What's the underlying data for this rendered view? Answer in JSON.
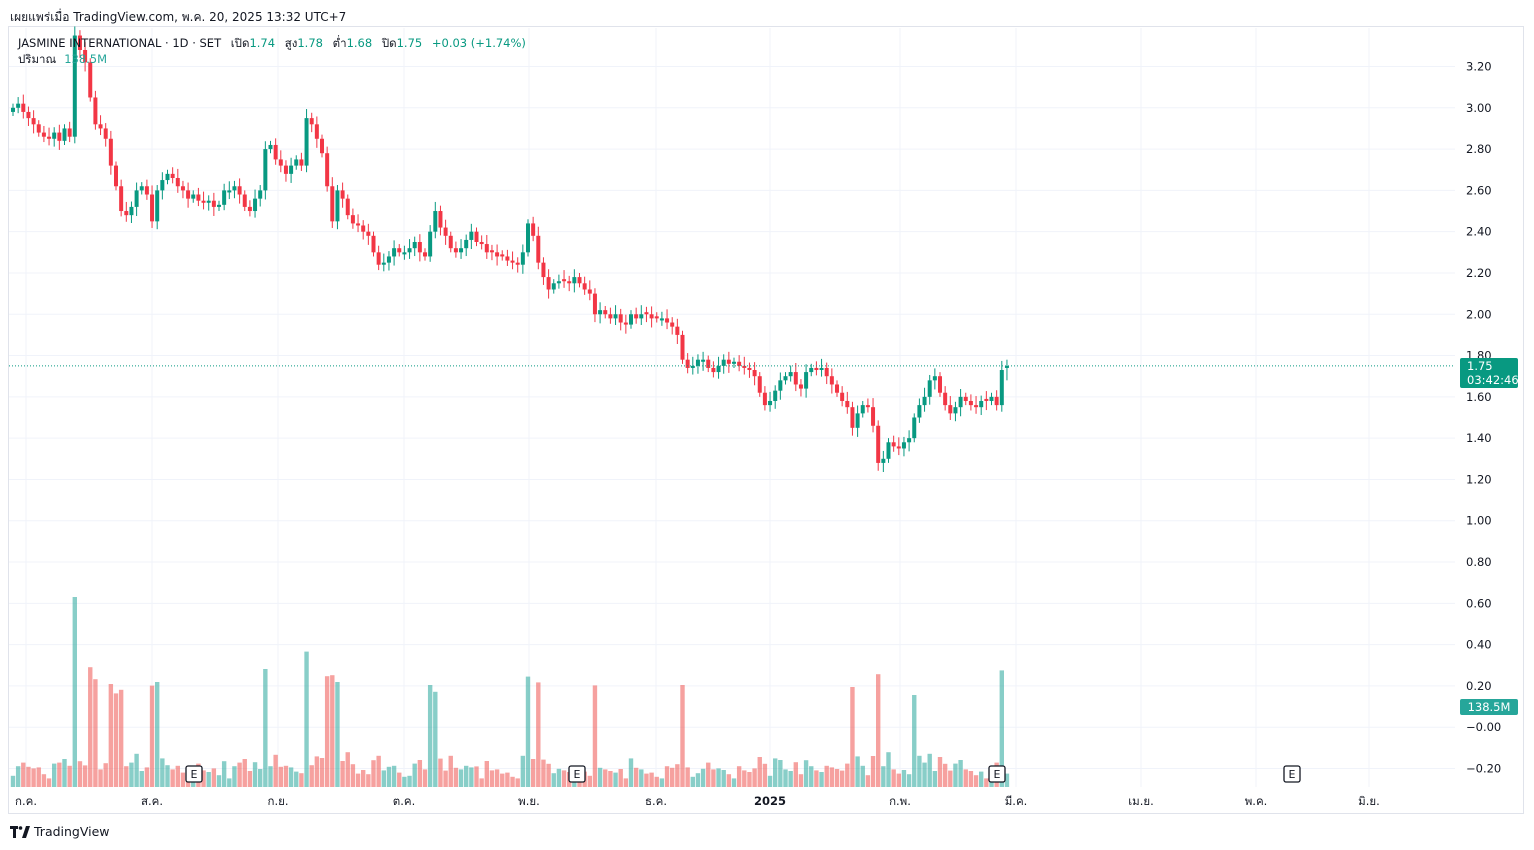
{
  "header": {
    "published": "เผยแพร่เมื่อ TradingView.com, พ.ค. 20, 2025 13:32 UTC+7"
  },
  "legend": {
    "symbol": "JASMINE INTERNATIONAL",
    "sep": "·",
    "interval": "1D",
    "exchange": "SET",
    "open_label": "เปิด",
    "open": "1.74",
    "high_label": "สูง",
    "high": "1.78",
    "low_label": "ต่ำ",
    "low": "1.68",
    "close_label": "ปิด",
    "close": "1.75",
    "change": "+0.03 (+1.74%)",
    "volume_label": "ปริมาณ",
    "volume": "138.5M"
  },
  "price_tag": {
    "price": "1.75",
    "countdown": "03:42:46"
  },
  "volume_tag": "138.5M",
  "brand": "TradingView",
  "colors": {
    "up": "#089981",
    "down": "#f23645",
    "vol_up": "#26a69a",
    "vol_down": "#ef5350",
    "grid": "#f0f3fa"
  },
  "chart_data": {
    "type": "candlestick",
    "symbol": "JASMINE INTERNATIONAL",
    "interval": "1D",
    "exchange": "SET",
    "y_ticks": [
      "3.20",
      "3.00",
      "2.80",
      "2.60",
      "2.40",
      "2.20",
      "2.00",
      "1.80",
      "1.60",
      "1.40",
      "1.20",
      "1.00",
      "0.80",
      "0.60",
      "0.40",
      "0.20",
      "−0.00",
      "−0.20"
    ],
    "ylim": [
      -0.2,
      3.2
    ],
    "x_ticks": [
      "ก.ค.",
      "ส.ค.",
      "ก.ย.",
      "ต.ค.",
      "พ.ย.",
      "ธ.ค.",
      "2025",
      "ก.พ.",
      "มี.ค.",
      "เม.ย.",
      "พ.ค.",
      "มิ.ย."
    ],
    "earnings_markers": [
      "E",
      "E",
      "E",
      "E"
    ],
    "last_price": 1.75,
    "close": [
      3.0,
      3.02,
      2.98,
      2.95,
      2.92,
      2.88,
      2.86,
      2.85,
      2.88,
      2.84,
      2.9,
      2.86,
      3.35,
      3.28,
      3.22,
      3.05,
      2.92,
      2.9,
      2.85,
      2.72,
      2.62,
      2.5,
      2.48,
      2.52,
      2.6,
      2.62,
      2.58,
      2.45,
      2.6,
      2.65,
      2.68,
      2.66,
      2.62,
      2.6,
      2.56,
      2.58,
      2.55,
      2.54,
      2.55,
      2.52,
      2.53,
      2.6,
      2.6,
      2.62,
      2.58,
      2.52,
      2.5,
      2.56,
      2.6,
      2.8,
      2.82,
      2.75,
      2.72,
      2.68,
      2.72,
      2.75,
      2.72,
      2.95,
      2.92,
      2.85,
      2.78,
      2.62,
      2.45,
      2.6,
      2.56,
      2.48,
      2.44,
      2.43,
      2.4,
      2.38,
      2.3,
      2.24,
      2.25,
      2.28,
      2.32,
      2.3,
      2.3,
      2.32,
      2.35,
      2.3,
      2.28,
      2.4,
      2.5,
      2.42,
      2.38,
      2.32,
      2.3,
      2.32,
      2.36,
      2.4,
      2.35,
      2.34,
      2.3,
      2.3,
      2.28,
      2.28,
      2.26,
      2.25,
      2.24,
      2.3,
      2.44,
      2.38,
      2.25,
      2.18,
      2.12,
      2.15,
      2.16,
      2.16,
      2.15,
      2.18,
      2.15,
      2.12,
      2.1,
      2.0,
      2.02,
      2.0,
      1.98,
      2.0,
      1.96,
      1.95,
      2.0,
      1.98,
      2.0,
      2.0,
      1.98,
      1.98,
      1.98,
      1.96,
      1.94,
      1.9,
      1.78,
      1.74,
      1.75,
      1.78,
      1.78,
      1.74,
      1.72,
      1.75,
      1.78,
      1.76,
      1.77,
      1.75,
      1.74,
      1.73,
      1.7,
      1.62,
      1.56,
      1.58,
      1.63,
      1.68,
      1.7,
      1.72,
      1.66,
      1.64,
      1.72,
      1.74,
      1.73,
      1.74,
      1.7,
      1.66,
      1.62,
      1.58,
      1.55,
      1.45,
      1.52,
      1.56,
      1.55,
      1.46,
      1.28,
      1.3,
      1.38,
      1.36,
      1.35,
      1.38,
      1.4,
      1.5,
      1.56,
      1.6,
      1.68,
      1.7,
      1.62,
      1.56,
      1.52,
      1.55,
      1.6,
      1.58,
      1.56,
      1.55,
      1.58,
      1.58,
      1.6,
      1.56,
      1.73,
      1.75
    ]
  }
}
